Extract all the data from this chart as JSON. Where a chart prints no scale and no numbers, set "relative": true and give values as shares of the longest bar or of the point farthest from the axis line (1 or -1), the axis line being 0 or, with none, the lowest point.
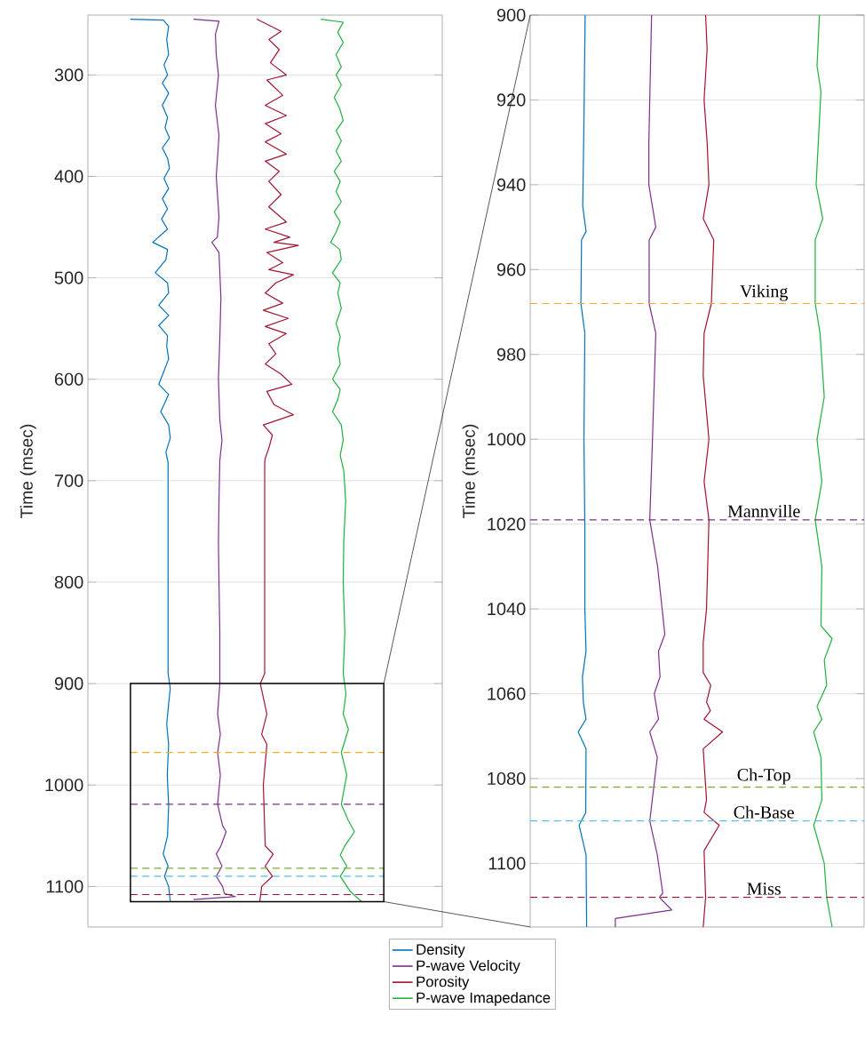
{
  "chart_data": [
    {
      "type": "line",
      "orientation": "horizontal",
      "relative": true,
      "ylabel": "Time (msec)",
      "ylim": [
        1140,
        241
      ],
      "yticks": [
        300,
        400,
        500,
        600,
        700,
        800,
        900,
        1000,
        1100
      ],
      "tick_labels": "y",
      "grid": "y",
      "legend": "bottom",
      "series": [
        {
          "name": "Density",
          "color": "#0072bd",
          "x": [
            245,
            246,
            252,
            265,
            280,
            290,
            300,
            308,
            318,
            330,
            342,
            352,
            362,
            372,
            382,
            392,
            402,
            412,
            422,
            432,
            442,
            452,
            465,
            472,
            482,
            495,
            505,
            515,
            527,
            537,
            547,
            557,
            567,
            580,
            592,
            605,
            615,
            632,
            645,
            658,
            672,
            682,
            890,
            905,
            920,
            940,
            960,
            990,
            1020,
            1050,
            1068,
            1080,
            1090,
            1100,
            1115
          ],
          "values": [
            0.155,
            0.276,
            0.295,
            0.288,
            0.295,
            0.278,
            0.291,
            0.272,
            0.295,
            0.272,
            0.291,
            0.282,
            0.298,
            0.272,
            0.291,
            0.298,
            0.278,
            0.295,
            0.272,
            0.291,
            0.269,
            0.291,
            0.237,
            0.291,
            0.285,
            0.246,
            0.291,
            0.295,
            0.259,
            0.295,
            0.259,
            0.291,
            0.288,
            0.295,
            0.278,
            0.259,
            0.295,
            0.266,
            0.295,
            0.301,
            0.285,
            0.293,
            0.293,
            0.301,
            0.295,
            0.288,
            0.295,
            0.29,
            0.295,
            0.291,
            0.275,
            0.293,
            0.28,
            0.295,
            0.301
          ]
        },
        {
          "name": "P-wave Velocity",
          "color": "#7e2f8e",
          "x": [
            245,
            247,
            260,
            280,
            300,
            330,
            360,
            400,
            440,
            460,
            465,
            475,
            520,
            560,
            600,
            640,
            660,
            680,
            720,
            760,
            800,
            850,
            900,
            930,
            950,
            968,
            990,
            1019,
            1040,
            1046,
            1060,
            1068,
            1080,
            1090,
            1100,
            1107,
            1110,
            1113
          ],
          "values": [
            0.386,
            0.479,
            0.466,
            0.469,
            0.477,
            0.466,
            0.479,
            0.469,
            0.479,
            0.473,
            0.453,
            0.479,
            0.486,
            0.482,
            0.477,
            0.482,
            0.49,
            0.482,
            0.479,
            0.477,
            0.479,
            0.482,
            0.482,
            0.474,
            0.484,
            0.474,
            0.484,
            0.474,
            0.492,
            0.505,
            0.486,
            0.469,
            0.49,
            0.469,
            0.492,
            0.499,
            0.539,
            0.386
          ]
        },
        {
          "name": "Porosity",
          "color": "#a2142f",
          "x": [
            245,
            257,
            265,
            275,
            288,
            300,
            305,
            320,
            330,
            340,
            348,
            358,
            366,
            378,
            385,
            395,
            405,
            418,
            430,
            445,
            452,
            460,
            465,
            468,
            475,
            485,
            492,
            497,
            505,
            515,
            525,
            532,
            540,
            548,
            555,
            565,
            575,
            585,
            595,
            605,
            612,
            625,
            635,
            645,
            655,
            668,
            678,
            682,
            890,
            900,
            930,
            950,
            960,
            1000,
            1060,
            1068,
            1080,
            1090,
            1100,
            1115
          ],
          "values": [
            0.617,
            0.706,
            0.661,
            0.699,
            0.667,
            0.725,
            0.654,
            0.712,
            0.648,
            0.725,
            0.648,
            0.706,
            0.648,
            0.725,
            0.648,
            0.699,
            0.661,
            0.706,
            0.661,
            0.725,
            0.648,
            0.738,
            0.68,
            0.769,
            0.654,
            0.712,
            0.661,
            0.751,
            0.687,
            0.648,
            0.712,
            0.641,
            0.732,
            0.648,
            0.725,
            0.661,
            0.687,
            0.648,
            0.706,
            0.745,
            0.654,
            0.68,
            0.751,
            0.641,
            0.674,
            0.661,
            0.648,
            0.646,
            0.646,
            0.63,
            0.654,
            0.635,
            0.654,
            0.641,
            0.648,
            0.677,
            0.648,
            0.674,
            0.635,
            0.628
          ]
        },
        {
          "name": "P-wave Imapedance",
          "color": "#20b040",
          "x": [
            245,
            248,
            258,
            268,
            280,
            292,
            300,
            310,
            322,
            333,
            345,
            355,
            365,
            375,
            385,
            395,
            405,
            415,
            425,
            435,
            445,
            455,
            465,
            472,
            482,
            495,
            505,
            515,
            530,
            545,
            558,
            570,
            585,
            600,
            610,
            620,
            632,
            645,
            660,
            675,
            690,
            720,
            760,
            800,
            850,
            890,
            910,
            930,
            945,
            968,
            990,
            1019,
            1035,
            1046,
            1060,
            1069,
            1080,
            1090,
            1105,
            1115
          ],
          "values": [
            0.851,
            0.933,
            0.913,
            0.933,
            0.907,
            0.926,
            0.907,
            0.926,
            0.9,
            0.92,
            0.933,
            0.907,
            0.926,
            0.907,
            0.926,
            0.9,
            0.922,
            0.907,
            0.926,
            0.9,
            0.922,
            0.907,
            0.887,
            0.92,
            0.926,
            0.894,
            0.922,
            0.913,
            0.926,
            0.907,
            0.922,
            0.913,
            0.922,
            0.894,
            0.922,
            0.913,
            0.894,
            0.926,
            0.933,
            0.922,
            0.935,
            0.942,
            0.935,
            0.933,
            0.939,
            0.933,
            0.943,
            0.933,
            0.952,
            0.926,
            0.946,
            0.926,
            0.952,
            0.974,
            0.939,
            0.922,
            0.946,
            0.922,
            0.959,
            1
          ]
        }
      ],
      "ref_lines": [
        {
          "axis": "y",
          "value": 968,
          "color": "#edb120",
          "line_style": "dashed"
        },
        {
          "axis": "y",
          "value": 1019,
          "color": "#7e2f8e",
          "line_style": "dashed"
        },
        {
          "axis": "y",
          "value": 1082,
          "color": "#77ac30",
          "line_style": "dashed"
        },
        {
          "axis": "y",
          "value": 1090,
          "color": "#4dbeee",
          "line_style": "dashed"
        },
        {
          "axis": "y",
          "value": 1108,
          "color": "#a2142f",
          "line_style": "dashed"
        }
      ]
    },
    {
      "type": "line",
      "orientation": "horizontal",
      "relative": true,
      "ylabel": "Time (msec)",
      "ylim": [
        1115,
        900
      ],
      "yticks": [
        900,
        920,
        940,
        960,
        980,
        1000,
        1020,
        1040,
        1060,
        1080,
        1100
      ],
      "tick_labels": "y",
      "grid": "y",
      "series": [
        {
          "color": "#0072bd",
          "x": [
            900,
            925,
            945,
            951,
            953,
            968,
            975,
            1000,
            1020,
            1040,
            1050,
            1056,
            1062,
            1066,
            1069,
            1073,
            1088,
            1091,
            1098,
            1115
          ],
          "values": [
            0.182,
            0.178,
            0.174,
            0.185,
            0.17,
            0.168,
            0.181,
            0.178,
            0.181,
            0.181,
            0.185,
            0.173,
            0.176,
            0.185,
            0.159,
            0.185,
            0.184,
            0.162,
            0.185,
            0.187
          ]
        },
        {
          "color": "#7e2f8e",
          "x": [
            900,
            930,
            940,
            950,
            953,
            968,
            975,
            1000,
            1019,
            1030,
            1046,
            1050,
            1056,
            1060,
            1066,
            1069,
            1075,
            1090,
            1098,
            1107,
            1108,
            1111,
            1113,
            1115
          ],
          "values": [
            0.402,
            0.393,
            0.393,
            0.416,
            0.394,
            0.394,
            0.416,
            0.405,
            0.396,
            0.422,
            0.446,
            0.425,
            0.43,
            0.411,
            0.425,
            0.396,
            0.421,
            0.396,
            0.421,
            0.439,
            0.428,
            0.469,
            0.282,
            0.282
          ]
        },
        {
          "color": "#a2142f",
          "x": [
            900,
            908,
            920,
            930,
            940,
            948,
            953,
            968,
            975,
            985,
            1000,
            1010,
            1019,
            1040,
            1048,
            1055,
            1058,
            1062,
            1064,
            1066,
            1069,
            1073,
            1085,
            1088,
            1091,
            1097,
            1108,
            1115
          ],
          "values": [
            0.581,
            0.586,
            0.576,
            0.586,
            0.592,
            0.573,
            0.608,
            0.6,
            0.576,
            0.573,
            0.592,
            0.576,
            0.592,
            0.584,
            0.573,
            0.573,
            0.598,
            0.584,
            0.597,
            0.576,
            0.637,
            0.573,
            0.584,
            0.576,
            0.626,
            0.576,
            0.581,
            0.573
          ]
        },
        {
          "color": "#20b040",
          "x": [
            900,
            912,
            918,
            940,
            948,
            953,
            968,
            975,
            990,
            1000,
            1010,
            1019,
            1030,
            1044,
            1047,
            1052,
            1058,
            1063,
            1066,
            1069,
            1075,
            1085,
            1091,
            1100,
            1108,
            1115
          ],
          "values": [
            0.958,
            0.95,
            0.963,
            0.947,
            0.969,
            0.944,
            0.944,
            0.96,
            0.974,
            0.95,
            0.966,
            0.944,
            0.966,
            0.963,
            1,
            0.974,
            0.982,
            0.95,
            0.966,
            0.939,
            0.963,
            0.966,
            0.939,
            0.974,
            0.982,
            1
          ]
        }
      ],
      "ref_lines": [
        {
          "axis": "y",
          "value": 968,
          "label": "Viking",
          "color": "#edb120",
          "line_style": "dashed"
        },
        {
          "axis": "y",
          "value": 1019,
          "label": "Mannville",
          "color": "#7e2f8e",
          "line_style": "dashed"
        },
        {
          "axis": "y",
          "value": 1082,
          "label": "Ch-Top",
          "color": "#77ac30",
          "line_style": "dashed"
        },
        {
          "axis": "y",
          "value": 1090,
          "label": "Ch-Base",
          "color": "#4dbeee",
          "line_style": "dashed"
        },
        {
          "axis": "y",
          "value": 1108,
          "label": "Miss",
          "color": "#a2142f",
          "line_style": "dashed"
        }
      ]
    }
  ]
}
